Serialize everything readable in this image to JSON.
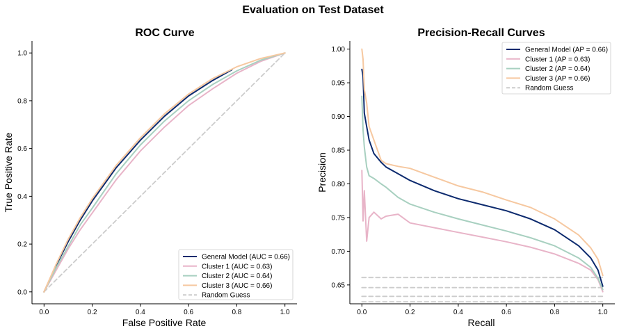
{
  "figure": {
    "suptitle": "Evaluation on Test Dataset",
    "colors": {
      "general": "#0c2a6e",
      "cluster1": "#e8b4c8",
      "cluster2": "#a8d0c0",
      "cluster3": "#f6c8a0",
      "random": "#cccccc"
    }
  },
  "chart_data": [
    {
      "type": "line",
      "title": "ROC Curve",
      "xlabel": "False Positive Rate",
      "ylabel": "True Positive Rate",
      "xlim": [
        -0.05,
        1.05
      ],
      "ylim": [
        -0.05,
        1.05
      ],
      "xticks": [
        "0.0",
        "0.2",
        "0.4",
        "0.6",
        "0.8",
        "1.0"
      ],
      "yticks": [
        "0.0",
        "0.2",
        "0.4",
        "0.6",
        "0.8",
        "1.0"
      ],
      "grid": false,
      "legend_position": "lower-right",
      "series": [
        {
          "name": "General Model (AUC = 0.66)",
          "color": "#0c2a6e",
          "dashed": false,
          "x": [
            0,
            0.05,
            0.1,
            0.15,
            0.2,
            0.3,
            0.4,
            0.5,
            0.6,
            0.7,
            0.78
          ],
          "y": [
            0,
            0.11,
            0.21,
            0.3,
            0.38,
            0.52,
            0.635,
            0.735,
            0.82,
            0.885,
            0.93
          ]
        },
        {
          "name": "Cluster 1 (AUC = 0.63)",
          "color": "#e8b4c8",
          "dashed": false,
          "x": [
            0,
            0.05,
            0.1,
            0.15,
            0.2,
            0.3,
            0.4,
            0.5,
            0.6,
            0.7,
            0.8,
            0.9,
            1.0
          ],
          "y": [
            0,
            0.09,
            0.18,
            0.26,
            0.33,
            0.47,
            0.59,
            0.69,
            0.78,
            0.85,
            0.915,
            0.965,
            1.0
          ]
        },
        {
          "name": "Cluster 2 (AUC = 0.64)",
          "color": "#a8d0c0",
          "dashed": false,
          "x": [
            0,
            0.05,
            0.1,
            0.15,
            0.2,
            0.3,
            0.4,
            0.5,
            0.6,
            0.7,
            0.8,
            0.9,
            1.0
          ],
          "y": [
            0,
            0.1,
            0.19,
            0.28,
            0.35,
            0.495,
            0.615,
            0.715,
            0.8,
            0.868,
            0.925,
            0.97,
            1.0
          ]
        },
        {
          "name": "Cluster 3 (AUC = 0.66)",
          "color": "#f6c8a0",
          "dashed": false,
          "x": [
            0,
            0.05,
            0.1,
            0.15,
            0.2,
            0.3,
            0.4,
            0.5,
            0.6,
            0.7,
            0.8,
            0.9,
            1.0
          ],
          "y": [
            0,
            0.115,
            0.22,
            0.31,
            0.39,
            0.53,
            0.645,
            0.745,
            0.828,
            0.893,
            0.942,
            0.977,
            1.0
          ]
        },
        {
          "name": "Random Guess",
          "color": "#cccccc",
          "dashed": true,
          "x": [
            0,
            1
          ],
          "y": [
            0,
            1
          ]
        }
      ]
    },
    {
      "type": "line",
      "title": "Precision-Recall Curves",
      "xlabel": "Recall",
      "ylabel": "Precision",
      "xlim": [
        -0.05,
        1.05
      ],
      "ylim": [
        0.622,
        1.012
      ],
      "xticks": [
        "0.0",
        "0.2",
        "0.4",
        "0.6",
        "0.8",
        "1.0"
      ],
      "yticks": [
        "0.65",
        "0.70",
        "0.75",
        "0.80",
        "0.85",
        "0.90",
        "0.95",
        "1.00"
      ],
      "grid": false,
      "legend_position": "upper-right",
      "series": [
        {
          "name": "General Model (AP = 0.66)",
          "color": "#0c2a6e",
          "dashed": false,
          "x": [
            0,
            0.005,
            0.01,
            0.02,
            0.03,
            0.05,
            0.08,
            0.1,
            0.15,
            0.2,
            0.3,
            0.4,
            0.5,
            0.6,
            0.7,
            0.8,
            0.9,
            0.95,
            0.98,
            1.0
          ],
          "y": [
            0.97,
            0.96,
            0.905,
            0.885,
            0.865,
            0.845,
            0.832,
            0.825,
            0.815,
            0.805,
            0.79,
            0.778,
            0.769,
            0.76,
            0.748,
            0.732,
            0.708,
            0.69,
            0.672,
            0.648
          ]
        },
        {
          "name": "Cluster 1 (AP = 0.63)",
          "color": "#e8b4c8",
          "dashed": false,
          "x": [
            0,
            0.005,
            0.01,
            0.02,
            0.03,
            0.05,
            0.08,
            0.1,
            0.15,
            0.2,
            0.3,
            0.4,
            0.5,
            0.6,
            0.7,
            0.8,
            0.9,
            0.95,
            0.98,
            1.0
          ],
          "y": [
            0.82,
            0.745,
            0.79,
            0.715,
            0.75,
            0.758,
            0.748,
            0.752,
            0.755,
            0.742,
            0.735,
            0.728,
            0.721,
            0.714,
            0.706,
            0.696,
            0.682,
            0.672,
            0.658,
            0.64
          ]
        },
        {
          "name": "Cluster 2 (AP = 0.64)",
          "color": "#a8d0c0",
          "dashed": false,
          "x": [
            0,
            0.005,
            0.01,
            0.02,
            0.03,
            0.05,
            0.08,
            0.1,
            0.15,
            0.2,
            0.3,
            0.4,
            0.5,
            0.6,
            0.7,
            0.8,
            0.9,
            0.95,
            0.98,
            1.0
          ],
          "y": [
            0.93,
            0.88,
            0.855,
            0.825,
            0.812,
            0.808,
            0.8,
            0.795,
            0.78,
            0.77,
            0.758,
            0.748,
            0.739,
            0.73,
            0.72,
            0.708,
            0.69,
            0.676,
            0.66,
            0.643
          ]
        },
        {
          "name": "Cluster 3 (AP = 0.66)",
          "color": "#f6c8a0",
          "dashed": false,
          "x": [
            0,
            0.005,
            0.01,
            0.02,
            0.03,
            0.05,
            0.08,
            0.1,
            0.15,
            0.2,
            0.3,
            0.4,
            0.5,
            0.6,
            0.7,
            0.8,
            0.9,
            0.95,
            0.98,
            1.0
          ],
          "y": [
            1.0,
            0.985,
            0.94,
            0.92,
            0.885,
            0.865,
            0.835,
            0.83,
            0.826,
            0.823,
            0.81,
            0.797,
            0.788,
            0.776,
            0.765,
            0.748,
            0.724,
            0.705,
            0.688,
            0.664
          ]
        },
        {
          "name": "Random Guess",
          "color": "#cccccc",
          "dashed": true,
          "x": [
            0,
            1
          ],
          "y": [
            0.661,
            0.661
          ]
        },
        {
          "name": "",
          "color": "#cccccc",
          "dashed": true,
          "x": [
            0,
            1
          ],
          "y": [
            0.646,
            0.646
          ]
        },
        {
          "name": "",
          "color": "#cccccc",
          "dashed": true,
          "x": [
            0,
            1
          ],
          "y": [
            0.633,
            0.633
          ]
        },
        {
          "name": "",
          "color": "#cccccc",
          "dashed": true,
          "x": [
            0,
            1
          ],
          "y": [
            0.625,
            0.625
          ]
        }
      ]
    }
  ]
}
